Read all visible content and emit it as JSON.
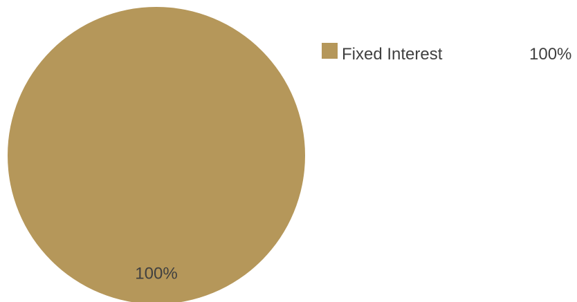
{
  "chart_data": {
    "type": "pie",
    "slices": [
      {
        "label": "Fixed Interest",
        "value": 100,
        "display": "100%",
        "color": "#B5975A"
      }
    ],
    "legend": {
      "placement": "top-right",
      "entries": [
        {
          "label": "Fixed Interest",
          "value_text": "100%",
          "color": "#B5975A"
        }
      ]
    }
  }
}
